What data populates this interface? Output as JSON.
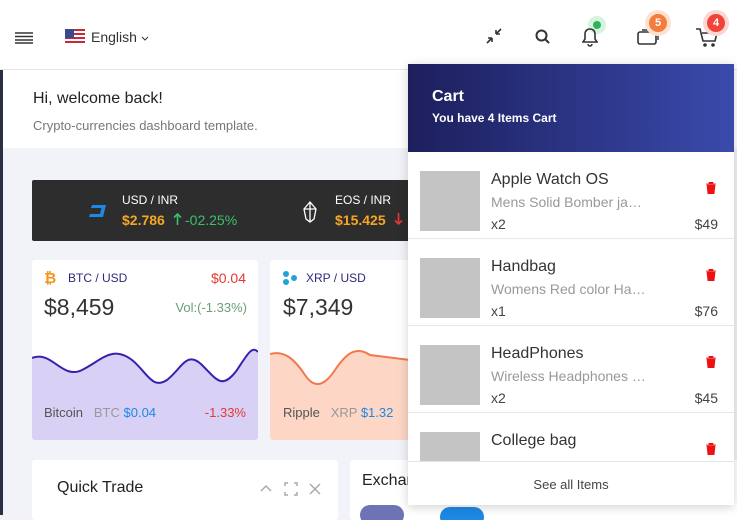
{
  "header": {
    "language": "English",
    "badges": {
      "chat": "5",
      "cart": "4"
    }
  },
  "welcome": {
    "title": "Hi, welcome back!",
    "subtitle": "Crypto-currencies dashboard template."
  },
  "ticker": [
    {
      "pair": "USD / INR",
      "price": "$2.786",
      "change": "-02.25%"
    },
    {
      "pair": "EOS / INR",
      "price": "$15.425"
    }
  ],
  "cards": [
    {
      "pair": "BTC / USD",
      "delta": "$0.04",
      "price": "$8,459",
      "volume": "Vol:(-1.33%)",
      "name": "Bitcoin",
      "symbol": "BTC",
      "symbol_price": "$0.04",
      "change": "-1.33%"
    },
    {
      "pair": "XRP / USD",
      "price": "$7,349",
      "name": "Ripple",
      "symbol": "XRP",
      "symbol_price": "$1.32"
    }
  ],
  "quick_trade": {
    "title": "Quick Trade"
  },
  "exchange": {
    "title": "Exchange"
  },
  "cart": {
    "title": "Cart",
    "subtitle": "You have 4 Items Cart",
    "items": [
      {
        "name": "Apple Watch OS",
        "description": "Mens Solid Bomber ja…",
        "qty": "x2",
        "price": "$49"
      },
      {
        "name": "Handbag",
        "description": "Womens Red color Ha…",
        "qty": "x1",
        "price": "$76"
      },
      {
        "name": "HeadPhones",
        "description": "Wireless Headphones …",
        "qty": "x2",
        "price": "$45"
      },
      {
        "name": "College bag"
      }
    ],
    "footer": "See all Items"
  }
}
